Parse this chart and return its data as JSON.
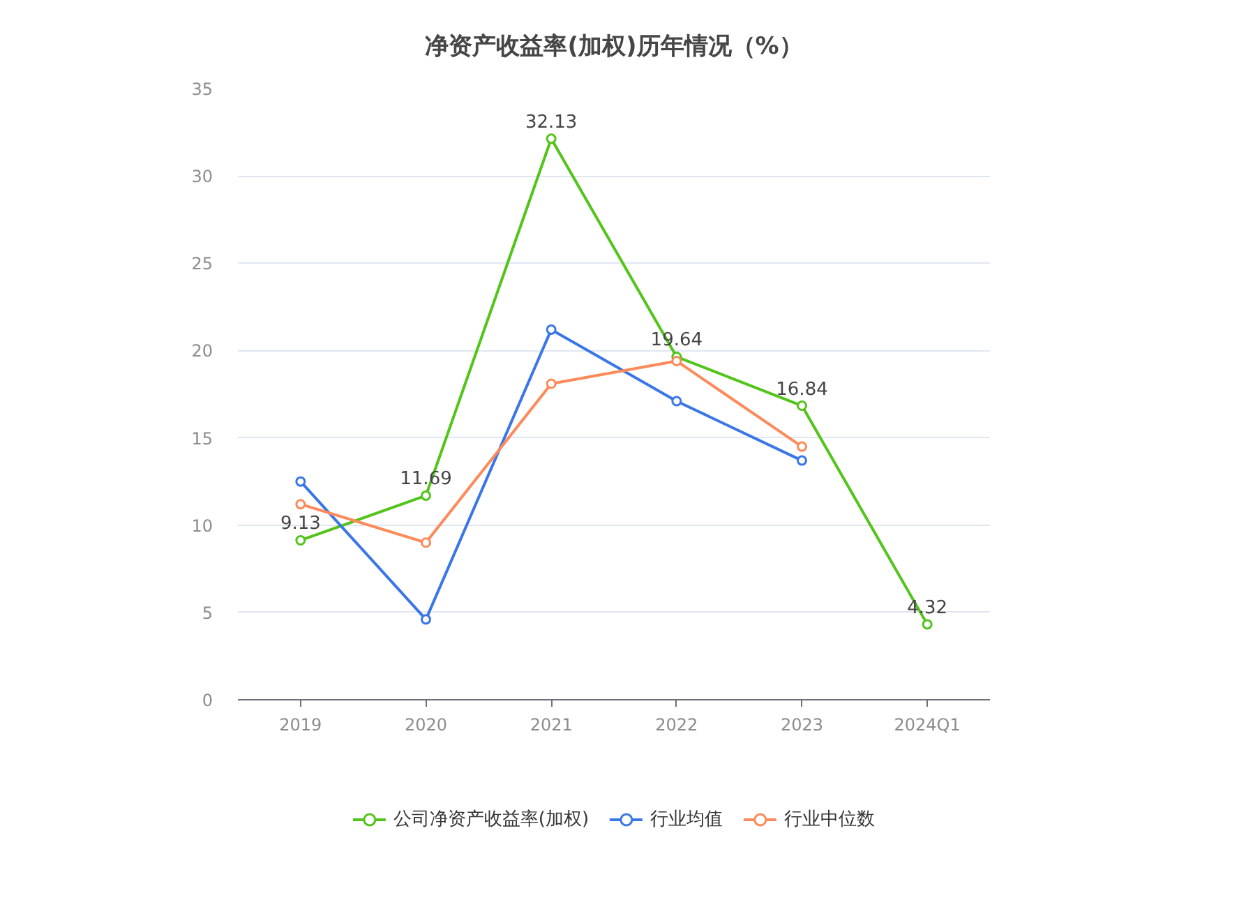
{
  "chart_data": {
    "type": "line",
    "title": "净资产收益率(加权)历年情况（%）",
    "categories": [
      "2019",
      "2020",
      "2021",
      "2022",
      "2023",
      "2024Q1"
    ],
    "series": [
      {
        "name": "公司净资产收益率(加权)",
        "color": "#52c41a",
        "values": [
          9.13,
          11.69,
          32.13,
          19.64,
          16.84,
          4.32
        ],
        "value_labels": [
          "9.13",
          "11.69",
          "32.13",
          "19.64",
          "16.84",
          "4.32"
        ]
      },
      {
        "name": "行业均值",
        "color": "#3a76e8",
        "values": [
          12.5,
          4.6,
          21.2,
          17.1,
          13.7,
          null
        ]
      },
      {
        "name": "行业中位数",
        "color": "#fc8a5a",
        "values": [
          11.2,
          9.0,
          18.1,
          19.4,
          14.5,
          null
        ]
      }
    ],
    "ylim": [
      0,
      35
    ],
    "yticks": [
      0,
      5,
      10,
      15,
      20,
      25,
      30,
      35
    ],
    "grid": "y",
    "legend": "bottom",
    "marker": "circle",
    "line_style": "solid"
  }
}
